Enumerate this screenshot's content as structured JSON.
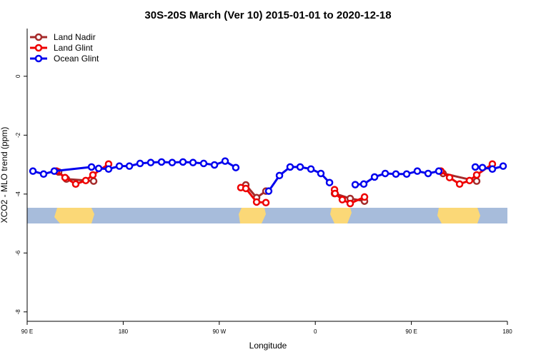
{
  "chart_data": {
    "type": "line",
    "title": "30S-20S March (Ver 10)   2015-01-01 to 2020-12-18",
    "xlabel": "Longitude",
    "ylabel": "XCO2 - MLO trend (ppm)",
    "xlim": [
      90,
      540
    ],
    "ylim": [
      -8.32,
      1.62
    ],
    "xticks": [
      {
        "value": 90,
        "label": "90 E"
      },
      {
        "value": 180,
        "label": "180"
      },
      {
        "value": 270,
        "label": "90 W"
      },
      {
        "value": 360,
        "label": "0"
      },
      {
        "value": 450,
        "label": "90 E"
      },
      {
        "value": 540,
        "label": "180"
      }
    ],
    "yticks": [
      0,
      -2,
      -4,
      -6,
      -8
    ],
    "legend": "top-left",
    "series": [
      {
        "name": "Land Nadir",
        "color": "#a52a2a",
        "x": [
          119.5,
          126.8,
          152.3,
          null,
          294.9,
          305,
          313.7,
          null,
          378,
          392.7,
          406.1,
          null,
          479.7,
          511.2
        ],
        "values": [
          -3.25,
          -3.49,
          -3.56,
          null,
          -3.69,
          -4.12,
          -3.9,
          null,
          -3.98,
          -4.15,
          -4.24,
          null,
          -3.3,
          -3.56
        ]
      },
      {
        "name": "Land Glint",
        "color": "#ee0000",
        "x": [
          117.5,
          125.5,
          135.5,
          144.9,
          151.6,
          166.3,
          null,
          290.2,
          294.9,
          305,
          313.7,
          null,
          378,
          378.5,
          385.3,
          392.7,
          406.1,
          null,
          477.7,
          485.8,
          495.2,
          504.5,
          511.2,
          525.9
        ],
        "values": [
          -3.22,
          -3.44,
          -3.66,
          -3.54,
          -3.35,
          -2.98,
          null,
          -3.78,
          -3.81,
          -4.27,
          -4.29,
          null,
          -3.85,
          -3.98,
          -4.19,
          -4.32,
          -4.1,
          null,
          -3.22,
          -3.44,
          -3.66,
          -3.54,
          -3.35,
          -2.98
        ]
      },
      {
        "name": "Ocean Glint",
        "color": "#0000ee",
        "x": [
          95.4,
          105.4,
          115.4,
          150.3,
          157,
          166.3,
          176.4,
          185.8,
          195.8,
          205.8,
          215.9,
          225.9,
          236,
          245.4,
          255.4,
          265.5,
          275.5,
          285.5,
          null,
          316.3,
          326.4,
          336.4,
          345.8,
          355.9,
          365.2,
          373.3,
          null,
          397.4,
          405.4,
          415.5,
          425.5,
          435.5,
          445.6,
          455.6,
          465.7,
          475.7,
          null,
          509.9,
          516.6,
          525.9,
          536
        ],
        "values": [
          -3.22,
          -3.32,
          -3.22,
          -3.08,
          -3.13,
          -3.15,
          -3.05,
          -3.05,
          -2.96,
          -2.93,
          -2.91,
          -2.93,
          -2.91,
          -2.93,
          -2.96,
          -3.01,
          -2.88,
          -3.1,
          null,
          -3.9,
          -3.37,
          -3.08,
          -3.08,
          -3.15,
          -3.3,
          -3.61,
          null,
          -3.68,
          -3.66,
          -3.42,
          -3.3,
          -3.32,
          -3.32,
          -3.22,
          -3.3,
          -3.22,
          null,
          -3.08,
          -3.1,
          -3.15,
          -3.05
        ]
      }
    ]
  }
}
